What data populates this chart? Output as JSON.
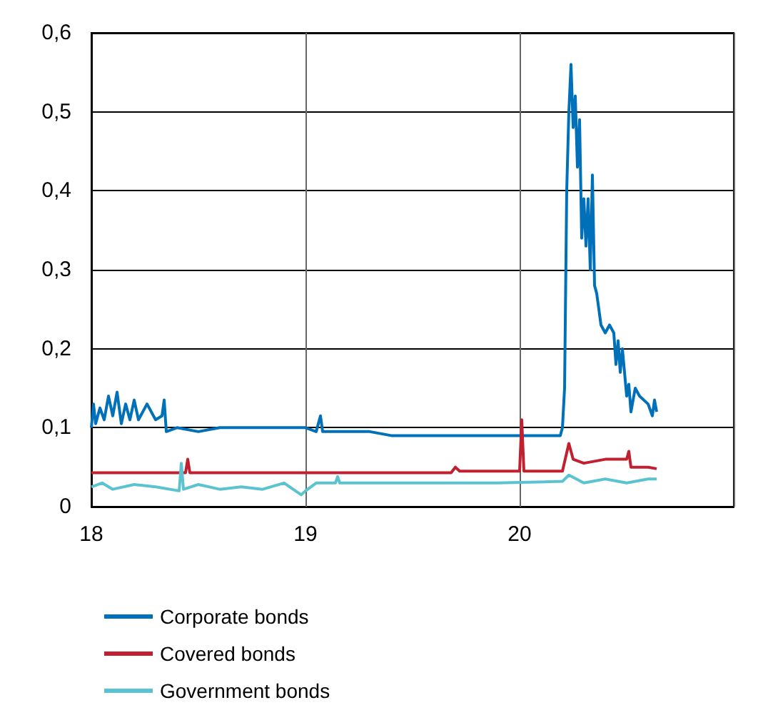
{
  "chart_data": {
    "type": "line",
    "xlim": [
      18,
      21
    ],
    "xticks": [
      18,
      19,
      20,
      {
        "value": 21,
        "label": null
      }
    ],
    "ylim": [
      0,
      0.6
    ],
    "yticks": [
      0,
      {
        "value": 0.1,
        "label": "0,1"
      },
      {
        "value": 0.2,
        "label": "0,2"
      },
      {
        "value": 0.3,
        "label": "0,3"
      },
      {
        "value": 0.4,
        "label": "0,4"
      },
      {
        "value": 0.5,
        "label": "0,5"
      },
      {
        "value": 0.6,
        "label": "0,6"
      }
    ],
    "grid": true,
    "legend": "bottom",
    "marker": "none",
    "line_style": "solid",
    "series": [
      {
        "name": "Corporate bonds",
        "color": "#0070b8",
        "x": [
          18.0,
          18.01,
          18.02,
          18.04,
          18.06,
          18.08,
          18.1,
          18.12,
          18.14,
          18.16,
          18.18,
          18.2,
          18.22,
          18.26,
          18.3,
          18.33,
          18.34,
          18.35,
          18.4,
          18.5,
          18.6,
          18.7,
          18.8,
          18.9,
          19.0,
          19.05,
          19.07,
          19.08,
          19.2,
          19.3,
          19.4,
          19.6,
          19.8,
          20.0,
          20.1,
          20.19,
          20.2,
          20.21,
          20.22,
          20.23,
          20.24,
          20.25,
          20.26,
          20.27,
          20.28,
          20.29,
          20.3,
          20.31,
          20.32,
          20.33,
          20.34,
          20.35,
          20.36,
          20.37,
          20.38,
          20.4,
          20.42,
          20.44,
          20.45,
          20.46,
          20.47,
          20.48,
          20.5,
          20.51,
          20.52,
          20.54,
          20.56,
          20.58,
          20.6,
          20.62,
          20.63,
          20.64
        ],
        "values": [
          0.1,
          0.13,
          0.105,
          0.125,
          0.11,
          0.14,
          0.115,
          0.145,
          0.105,
          0.13,
          0.11,
          0.135,
          0.11,
          0.13,
          0.11,
          0.115,
          0.135,
          0.095,
          0.1,
          0.095,
          0.1,
          0.1,
          0.1,
          0.1,
          0.1,
          0.095,
          0.115,
          0.095,
          0.095,
          0.095,
          0.09,
          0.09,
          0.09,
          0.09,
          0.09,
          0.09,
          0.1,
          0.15,
          0.4,
          0.5,
          0.56,
          0.48,
          0.52,
          0.43,
          0.49,
          0.34,
          0.39,
          0.33,
          0.39,
          0.3,
          0.42,
          0.28,
          0.27,
          0.25,
          0.23,
          0.22,
          0.23,
          0.22,
          0.18,
          0.21,
          0.17,
          0.2,
          0.14,
          0.155,
          0.12,
          0.15,
          0.14,
          0.135,
          0.13,
          0.115,
          0.135,
          0.12
        ]
      },
      {
        "name": "Covered bonds",
        "color": "#c0202f",
        "x": [
          18.0,
          18.2,
          18.44,
          18.45,
          18.46,
          18.7,
          19.0,
          19.4,
          19.68,
          19.7,
          19.72,
          19.9,
          20.0,
          20.01,
          20.02,
          20.2,
          20.23,
          20.25,
          20.3,
          20.4,
          20.5,
          20.51,
          20.52,
          20.6,
          20.64
        ],
        "values": [
          0.043,
          0.043,
          0.043,
          0.06,
          0.043,
          0.043,
          0.043,
          0.043,
          0.043,
          0.05,
          0.045,
          0.045,
          0.045,
          0.11,
          0.045,
          0.045,
          0.08,
          0.06,
          0.055,
          0.06,
          0.06,
          0.07,
          0.05,
          0.05,
          0.048
        ]
      },
      {
        "name": "Government bonds",
        "color": "#5bc3d0",
        "x": [
          18.0,
          18.05,
          18.1,
          18.2,
          18.3,
          18.41,
          18.42,
          18.43,
          18.5,
          18.6,
          18.7,
          18.8,
          18.9,
          18.98,
          19.0,
          19.05,
          19.14,
          19.15,
          19.16,
          19.3,
          19.6,
          19.9,
          20.2,
          20.23,
          20.3,
          20.4,
          20.5,
          20.6,
          20.64
        ],
        "values": [
          0.025,
          0.03,
          0.022,
          0.028,
          0.025,
          0.02,
          0.055,
          0.022,
          0.028,
          0.022,
          0.025,
          0.022,
          0.03,
          0.015,
          0.02,
          0.03,
          0.03,
          0.038,
          0.03,
          0.03,
          0.03,
          0.03,
          0.032,
          0.04,
          0.03,
          0.035,
          0.03,
          0.035,
          0.035
        ]
      }
    ]
  }
}
